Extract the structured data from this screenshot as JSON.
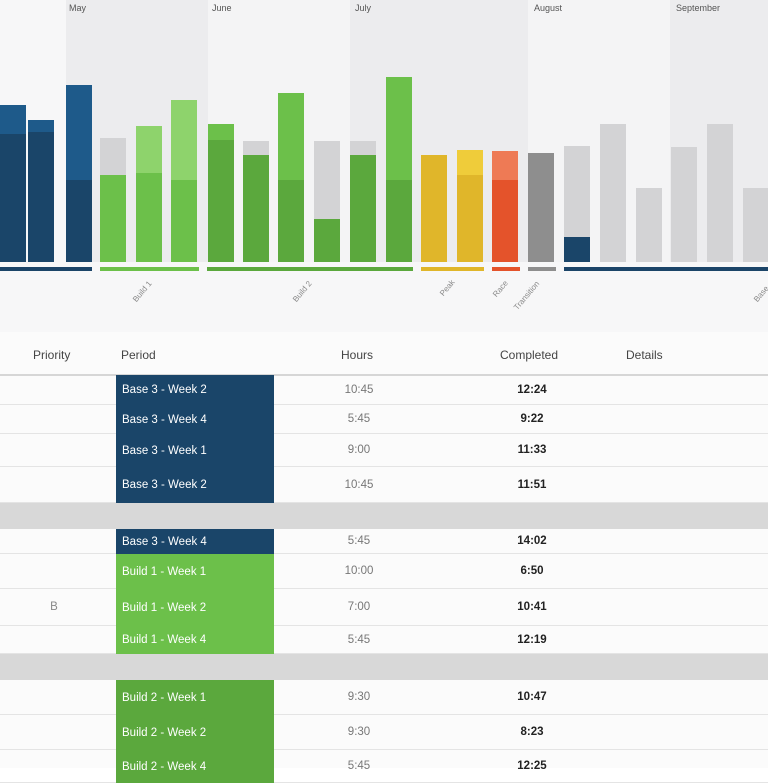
{
  "months": [
    "May",
    "June",
    "July",
    "August",
    "September"
  ],
  "phases": [
    {
      "label": "Build 1",
      "color": "#6cc04a"
    },
    {
      "label": "Build 2",
      "color": "#5ba83d"
    },
    {
      "label": "Peak",
      "color": "#e0b62a"
    },
    {
      "label": "Race",
      "color": "#e4532b"
    },
    {
      "label": "Transition",
      "color": "#8e8e8e"
    },
    {
      "label": "Base",
      "color": "#1b4468"
    }
  ],
  "chart_bars": [
    {
      "color": "#1a4569",
      "top_color": "#1e5a8a",
      "value": 0.62,
      "top": 0.14
    },
    {
      "color": "#1a4569",
      "top_color": "#1e5a8a",
      "value": 0.63,
      "top": 0.06
    },
    {
      "color": "#1a4569",
      "top_color": "#1e5a8a",
      "value": 0.4,
      "top": 0.46
    },
    {
      "color": "#6cc04a",
      "top_color": "#d3d3d5",
      "value": 0.42,
      "top": 0.18
    },
    {
      "color": "#6cc04a",
      "top_color": "#8ed36c",
      "value": 0.43,
      "top": 0.23
    },
    {
      "color": "#6cc04a",
      "top_color": "#8ed36c",
      "value": 0.4,
      "top": 0.39
    },
    {
      "color": "#5ba83d",
      "top_color": "#6cc04a",
      "value": 0.59,
      "top": 0.08
    },
    {
      "color": "#5ba83d",
      "top_color": "#d3d3d5",
      "value": 0.52,
      "top": 0.07
    },
    {
      "color": "#5ba83d",
      "top_color": "#6cc04a",
      "value": 0.4,
      "top": 0.42
    },
    {
      "color": "#5ba83d",
      "top_color": "#d3d3d5",
      "value": 0.21,
      "top": 0.38
    },
    {
      "color": "#5ba83d",
      "top_color": "#d3d3d5",
      "value": 0.52,
      "top": 0.07
    },
    {
      "color": "#5ba83d",
      "top_color": "#6cc04a",
      "value": 0.4,
      "top": 0.5
    },
    {
      "color": "#e0b62a",
      "top_color": "#e0b62a",
      "value": 0.52,
      "top": 0
    },
    {
      "color": "#e0b62a",
      "top_color": "#efcc3a",
      "value": 0.42,
      "top": 0.12
    },
    {
      "color": "#e4532b",
      "top_color": "#ee7a55",
      "value": 0.4,
      "top": 0.14
    },
    {
      "color": "#8e8e8e",
      "top_color": "#8e8e8e",
      "value": 0.53,
      "top": 0
    },
    {
      "color": "#1a4569",
      "top_color": "#d3d3d5",
      "value": 0.12,
      "top": 0.44
    },
    {
      "color": "#d3d3d5",
      "top_color": "#d3d3d5",
      "value": 0.67,
      "top": 0
    },
    {
      "color": "#d3d3d5",
      "top_color": "#d3d3d5",
      "value": 0.36,
      "top": 0
    },
    {
      "color": "#d3d3d5",
      "top_color": "#d3d3d5",
      "value": 0.56,
      "top": 0
    },
    {
      "color": "#d3d3d5",
      "top_color": "#d3d3d5",
      "value": 0.67,
      "top": 0
    },
    {
      "color": "#d3d3d5",
      "top_color": "#d3d3d5",
      "value": 0.36,
      "top": 0
    }
  ],
  "table": {
    "headers": {
      "priority": "Priority",
      "period": "Period",
      "hours": "Hours",
      "completed": "Completed",
      "details": "Details"
    },
    "rows": [
      {
        "priority": "",
        "period": "Base 3 - Week 2",
        "hours": "10:45",
        "completed": "12:24",
        "color": "#1a4569"
      },
      {
        "priority": "",
        "period": "Base 3 - Week 4",
        "hours": "5:45",
        "completed": "9:22",
        "color": "#1a4569"
      },
      {
        "priority": "",
        "period": "Base 3 - Week 1",
        "hours": "9:00",
        "completed": "11:33",
        "color": "#1a4569"
      },
      {
        "priority": "",
        "period": "Base 3 - Week 2",
        "hours": "10:45",
        "completed": "11:51",
        "color": "#1a4569"
      },
      {
        "priority": "",
        "period": "Base 3 - Week 4",
        "hours": "5:45",
        "completed": "14:02",
        "color": "#1a4569"
      },
      {
        "priority": "",
        "period": "Build 1 - Week 1",
        "hours": "10:00",
        "completed": "6:50",
        "color": "#6cc04a"
      },
      {
        "priority": "B",
        "period": "Build 1 - Week 2",
        "hours": "7:00",
        "completed": "10:41",
        "color": "#6cc04a"
      },
      {
        "priority": "",
        "period": "Build 1 - Week 4",
        "hours": "5:45",
        "completed": "12:19",
        "color": "#6cc04a"
      },
      {
        "priority": "",
        "period": "Build 2 - Week 1",
        "hours": "9:30",
        "completed": "10:47",
        "color": "#5ba83d"
      },
      {
        "priority": "",
        "period": "Build 2 - Week 2",
        "hours": "9:30",
        "completed": "8:23",
        "color": "#5ba83d"
      },
      {
        "priority": "",
        "period": "Build 2 - Week 4",
        "hours": "5:45",
        "completed": "12:25",
        "color": "#5ba83d"
      }
    ]
  }
}
